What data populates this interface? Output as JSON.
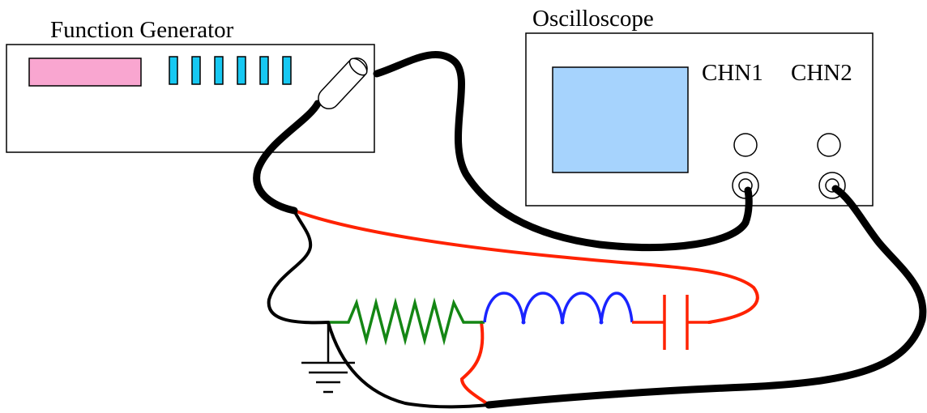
{
  "function_generator": {
    "label": "Function Generator",
    "display_color": "#f9a6d0",
    "button_color": "#17c8f2",
    "button_count": 6
  },
  "oscilloscope": {
    "label": "Oscilloscope",
    "screen_color": "#a6d3fd",
    "channel_labels": {
      "chn1": "CHN1",
      "chn2": "CHN2"
    }
  },
  "colors": {
    "coax_cable": "#000000",
    "red_wire": "#ff2200",
    "resistor": "#148614",
    "inductor": "#1a24ff",
    "capacitor": "#ff2200",
    "ground_wire": "#000000"
  }
}
